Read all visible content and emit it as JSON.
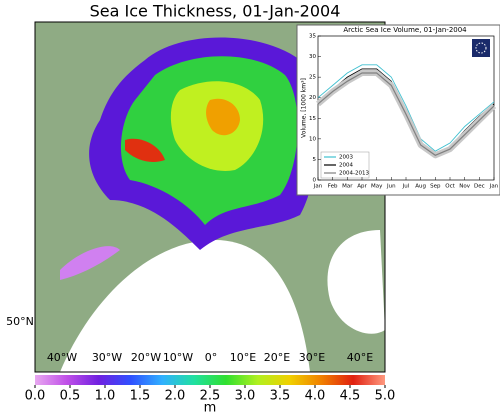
{
  "title": "Sea Ice Thickness, 01-Jan-2004",
  "map": {
    "lon_labels": [
      "40°W",
      "30°W",
      "20°W",
      "10°W",
      "0°",
      "10°E",
      "20°E",
      "30°E",
      "40°E"
    ],
    "lat_labels": [
      "50°N"
    ]
  },
  "colorbar": {
    "label": "m",
    "lim": [
      0,
      5
    ],
    "ticks": [
      {
        "value": 0,
        "label": "0.0"
      },
      {
        "value": 0.5,
        "label": "0.5"
      },
      {
        "value": 1,
        "label": "1.0"
      },
      {
        "value": 1.5,
        "label": "1.5"
      },
      {
        "value": 2,
        "label": "2.0"
      },
      {
        "value": 2.5,
        "label": "2.5"
      },
      {
        "value": 3,
        "label": "3.0"
      },
      {
        "value": 3.5,
        "label": "3.5"
      },
      {
        "value": 4,
        "label": "4.0"
      },
      {
        "value": 4.5,
        "label": "4.5"
      },
      {
        "value": 5,
        "label": "5.0"
      }
    ],
    "colors": [
      "#e8a8f0",
      "#c050e8",
      "#7020e0",
      "#3050ff",
      "#30b0ff",
      "#20e0a0",
      "#30e030",
      "#b0f020",
      "#f0d000",
      "#f08000",
      "#e02010",
      "#ff9a80"
    ]
  },
  "chart_data": {
    "type": "line",
    "title": "Arctic Sea Ice Volume, 01-Jan-2004",
    "ylabel": "Volume, [1000 km³]",
    "categories": [
      "Jan",
      "Feb",
      "Mar",
      "Apr",
      "May",
      "Jun",
      "Jul",
      "Aug",
      "Sep",
      "Oct",
      "Nov",
      "Dec",
      "Jan"
    ],
    "ylim": [
      0,
      35
    ],
    "yticks": [
      0,
      5,
      10,
      15,
      20,
      25,
      30,
      35
    ],
    "series": [
      {
        "name": "2003",
        "color": "#40c0d0",
        "values": [
          20,
          23,
          26,
          28,
          28,
          25,
          18,
          10,
          7,
          9,
          13,
          16,
          19
        ]
      },
      {
        "name": "2004",
        "color": "#000000",
        "values": [
          19,
          22,
          25,
          27,
          27,
          24,
          17,
          9,
          6,
          8,
          12,
          15.5,
          18.5
        ]
      },
      {
        "name": "2004-2013",
        "color": "#808080",
        "values": [
          18.5,
          21.5,
          24,
          26,
          26,
          23,
          16,
          8.5,
          6,
          7.5,
          11,
          14.5,
          18
        ]
      }
    ]
  }
}
